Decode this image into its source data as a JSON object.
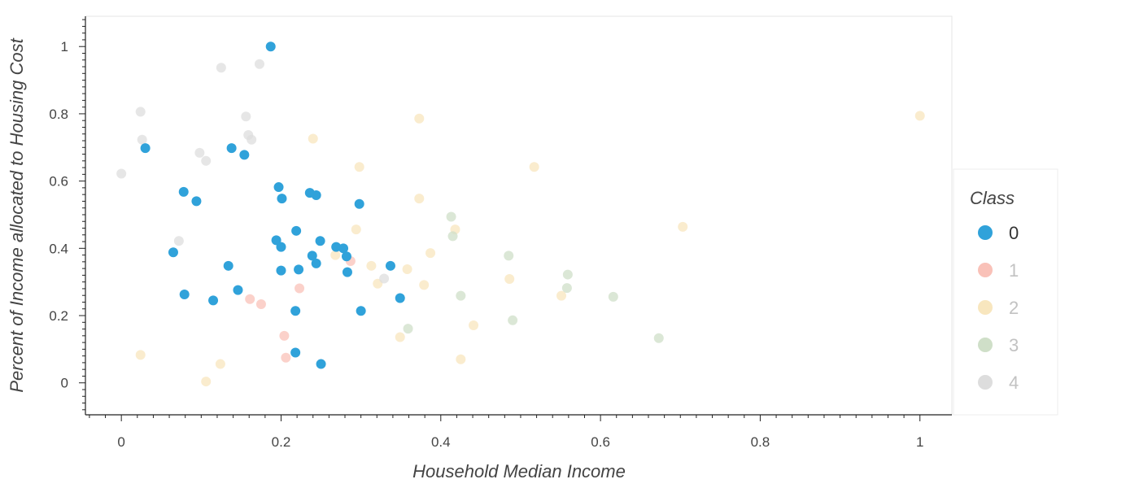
{
  "chart_data": {
    "type": "scatter",
    "xlabel": "Household Median Income",
    "ylabel": "Percent of Income allocated to Housing Cost",
    "xlim": [
      -0.045,
      1.04
    ],
    "ylim": [
      -0.095,
      1.09
    ],
    "x_ticks": [
      0,
      0.2,
      0.4,
      0.6,
      0.8,
      1
    ],
    "x_tick_labels": [
      "0",
      "0.2",
      "0.4",
      "0.6",
      "0.8",
      "1"
    ],
    "y_ticks": [
      0,
      0.2,
      0.4,
      0.6,
      0.8,
      1
    ],
    "y_tick_labels": [
      "0",
      "0.2",
      "0.4",
      "0.6",
      "0.8",
      "1"
    ],
    "grid": false,
    "legend": {
      "title": "Class",
      "placement": "right",
      "active_series": "0"
    },
    "series": [
      {
        "name": "0",
        "color": "#30a2da",
        "muted": false,
        "points": [
          [
            0.187,
            1.0
          ],
          [
            0.03,
            0.698
          ],
          [
            0.138,
            0.698
          ],
          [
            0.154,
            0.678
          ],
          [
            0.078,
            0.568
          ],
          [
            0.094,
            0.54
          ],
          [
            0.197,
            0.582
          ],
          [
            0.201,
            0.548
          ],
          [
            0.236,
            0.565
          ],
          [
            0.244,
            0.558
          ],
          [
            0.298,
            0.532
          ],
          [
            0.219,
            0.452
          ],
          [
            0.194,
            0.424
          ],
          [
            0.2,
            0.404
          ],
          [
            0.249,
            0.422
          ],
          [
            0.269,
            0.404
          ],
          [
            0.278,
            0.4
          ],
          [
            0.282,
            0.376
          ],
          [
            0.239,
            0.378
          ],
          [
            0.244,
            0.355
          ],
          [
            0.065,
            0.388
          ],
          [
            0.134,
            0.348
          ],
          [
            0.2,
            0.334
          ],
          [
            0.222,
            0.337
          ],
          [
            0.283,
            0.329
          ],
          [
            0.337,
            0.348
          ],
          [
            0.146,
            0.276
          ],
          [
            0.079,
            0.263
          ],
          [
            0.115,
            0.245
          ],
          [
            0.349,
            0.252
          ],
          [
            0.218,
            0.214
          ],
          [
            0.3,
            0.214
          ],
          [
            0.218,
            0.09
          ],
          [
            0.25,
            0.056
          ]
        ]
      },
      {
        "name": "1",
        "color": "#f9c1b8",
        "muted": true,
        "points": [
          [
            0.287,
            0.362
          ],
          [
            0.223,
            0.281
          ],
          [
            0.161,
            0.249
          ],
          [
            0.175,
            0.234
          ],
          [
            0.204,
            0.14
          ],
          [
            0.206,
            0.075
          ]
        ]
      },
      {
        "name": "2",
        "color": "#f8e6be",
        "muted": true,
        "points": [
          [
            0.373,
            0.786
          ],
          [
            1.0,
            0.794
          ],
          [
            0.24,
            0.726
          ],
          [
            0.298,
            0.642
          ],
          [
            0.517,
            0.642
          ],
          [
            0.373,
            0.548
          ],
          [
            0.294,
            0.456
          ],
          [
            0.418,
            0.456
          ],
          [
            0.703,
            0.464
          ],
          [
            0.387,
            0.386
          ],
          [
            0.268,
            0.38
          ],
          [
            0.313,
            0.348
          ],
          [
            0.358,
            0.338
          ],
          [
            0.321,
            0.295
          ],
          [
            0.379,
            0.291
          ],
          [
            0.486,
            0.309
          ],
          [
            0.551,
            0.259
          ],
          [
            0.441,
            0.171
          ],
          [
            0.349,
            0.136
          ],
          [
            0.425,
            0.07
          ],
          [
            0.024,
            0.083
          ],
          [
            0.124,
            0.056
          ],
          [
            0.106,
            0.004
          ]
        ]
      },
      {
        "name": "3",
        "color": "#cfdfc8",
        "muted": true,
        "points": [
          [
            0.413,
            0.494
          ],
          [
            0.415,
            0.436
          ],
          [
            0.485,
            0.378
          ],
          [
            0.559,
            0.322
          ],
          [
            0.558,
            0.282
          ],
          [
            0.425,
            0.259
          ],
          [
            0.616,
            0.256
          ],
          [
            0.359,
            0.161
          ],
          [
            0.49,
            0.186
          ],
          [
            0.673,
            0.133
          ]
        ]
      },
      {
        "name": "4",
        "color": "#dddddd",
        "muted": true,
        "points": [
          [
            0.173,
            0.948
          ],
          [
            0.125,
            0.937
          ],
          [
            0.024,
            0.806
          ],
          [
            0.156,
            0.792
          ],
          [
            0.159,
            0.737
          ],
          [
            0.163,
            0.723
          ],
          [
            0.026,
            0.723
          ],
          [
            0.098,
            0.684
          ],
          [
            0.106,
            0.66
          ],
          [
            0.0,
            0.622
          ],
          [
            0.072,
            0.422
          ],
          [
            0.329,
            0.31
          ]
        ]
      }
    ]
  }
}
